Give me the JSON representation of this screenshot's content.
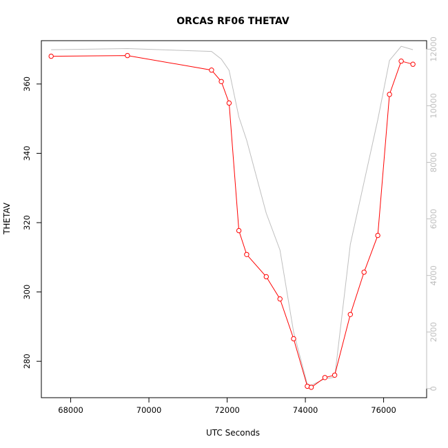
{
  "chart_data": {
    "type": "line",
    "title": "ORCAS RF06 THETAV",
    "xlabel": "UTC Seconds",
    "ylabel": "THETAV",
    "xlim": [
      67250,
      77100
    ],
    "ylim": [
      269.5,
      372.5
    ],
    "y2lim": [
      -320,
      12300
    ],
    "x_ticks": [
      68000,
      70000,
      72000,
      74000,
      76000
    ],
    "y_ticks": [
      280,
      300,
      320,
      340,
      360
    ],
    "y2_ticks": [
      0,
      2000,
      4000,
      6000,
      8000,
      10000,
      12000
    ],
    "grid": false,
    "series": [
      {
        "role": "primary",
        "color": "#ff0000",
        "marker": "open-circle",
        "x": [
          67500,
          69450,
          71600,
          71850,
          72050,
          72300,
          72500,
          73000,
          73350,
          73700,
          74050,
          74150,
          74500,
          74750,
          75150,
          75500,
          75850,
          76150,
          76450,
          76750
        ],
        "y": [
          368,
          368.2,
          364,
          360.7,
          354.5,
          317.7,
          310.8,
          304.4,
          298,
          286.5,
          272.8,
          272.5,
          275.3,
          276,
          293.5,
          305.7,
          316.3,
          357,
          366.6,
          365.7
        ]
      },
      {
        "role": "secondary-axis",
        "color": "#bebebe",
        "marker": "none",
        "x": [
          67500,
          69450,
          71600,
          71850,
          72050,
          72300,
          72500,
          73000,
          73350,
          73700,
          74050,
          74150,
          74500,
          74750,
          75150,
          75500,
          75850,
          76150,
          76450,
          76750
        ],
        "y": [
          11980,
          12020,
          11920,
          11650,
          11250,
          9600,
          8780,
          6200,
          4900,
          2000,
          150,
          120,
          350,
          400,
          5100,
          7300,
          9500,
          11600,
          12100,
          11980
        ]
      }
    ]
  }
}
